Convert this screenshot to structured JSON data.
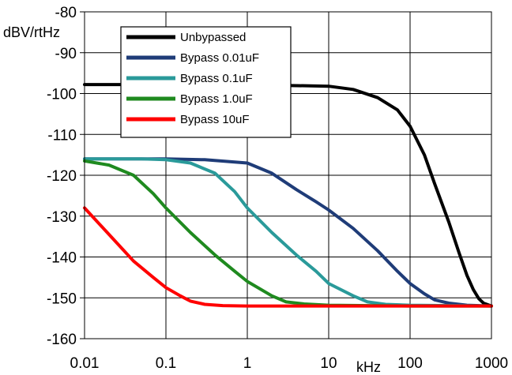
{
  "chart_data": {
    "type": "line",
    "title": "",
    "ylabel": "dBV/rtHz",
    "xlabel": "kHz",
    "x_scale": "log",
    "xlim": [
      0.01,
      1000
    ],
    "ylim": [
      -160,
      -80
    ],
    "x_ticks": [
      0.01,
      0.1,
      1,
      10,
      100,
      1000
    ],
    "x_tick_labels": [
      "0.01",
      "0.1",
      "1",
      "10",
      "100",
      "1000"
    ],
    "y_ticks": [
      -160,
      -150,
      -140,
      -130,
      -120,
      -110,
      -100,
      -90,
      -80
    ],
    "y_tick_labels": [
      "-160",
      "-150",
      "-140",
      "-130",
      "-120",
      "-110",
      "-100",
      "-90",
      "-80"
    ],
    "grid": true,
    "legend_position": "top-center",
    "series": [
      {
        "name": "Unbypassed",
        "color": "#000000",
        "x": [
          0.01,
          0.1,
          1,
          3,
          10,
          20,
          40,
          70,
          100,
          150,
          200,
          300,
          400,
          500,
          600,
          700,
          800,
          1000
        ],
        "y": [
          -97.8,
          -97.8,
          -97.9,
          -98.0,
          -98.2,
          -99.0,
          -101.0,
          -104.0,
          -108.0,
          -115.0,
          -122.0,
          -131.5,
          -139.0,
          -144.5,
          -148.0,
          -150.2,
          -151.3,
          -152.0
        ]
      },
      {
        "name": "Bypass 0.01uF",
        "color": "#1f3c78",
        "x": [
          0.01,
          0.1,
          0.3,
          1,
          2,
          4,
          7,
          10,
          20,
          40,
          70,
          100,
          150,
          200,
          300,
          500,
          1000
        ],
        "y": [
          -116.0,
          -116.0,
          -116.2,
          -117.0,
          -119.5,
          -123.5,
          -126.5,
          -128.5,
          -133.0,
          -138.5,
          -143.5,
          -146.5,
          -149.0,
          -150.5,
          -151.3,
          -151.8,
          -152.0
        ]
      },
      {
        "name": "Bypass 0.1uF",
        "color": "#2a9a9a",
        "x": [
          0.01,
          0.05,
          0.1,
          0.2,
          0.4,
          0.7,
          1,
          2,
          4,
          7,
          10,
          20,
          30,
          50,
          100,
          1000
        ],
        "y": [
          -116.0,
          -116.0,
          -116.2,
          -117.0,
          -119.5,
          -124.0,
          -128.0,
          -134.0,
          -139.5,
          -143.5,
          -146.5,
          -149.5,
          -151.0,
          -151.6,
          -151.8,
          -152.0
        ]
      },
      {
        "name": "Bypass 1.0uF",
        "color": "#1f8a1f",
        "x": [
          0.01,
          0.02,
          0.04,
          0.07,
          0.1,
          0.2,
          0.4,
          0.7,
          1,
          2,
          3,
          5,
          10,
          100,
          1000
        ],
        "y": [
          -116.5,
          -117.5,
          -120.0,
          -124.5,
          -128.0,
          -134.0,
          -139.5,
          -143.5,
          -146.0,
          -149.5,
          -151.0,
          -151.5,
          -151.8,
          -152.0,
          -152.0
        ]
      },
      {
        "name": "Bypass 10uF",
        "color": "#ff0000",
        "x": [
          0.01,
          0.02,
          0.04,
          0.07,
          0.1,
          0.15,
          0.2,
          0.3,
          0.5,
          1,
          10,
          100,
          1000
        ],
        "y": [
          -128.0,
          -134.5,
          -141.0,
          -145.0,
          -147.5,
          -149.5,
          -150.8,
          -151.6,
          -151.9,
          -152.0,
          -152.0,
          -152.0,
          -152.0
        ]
      }
    ]
  }
}
